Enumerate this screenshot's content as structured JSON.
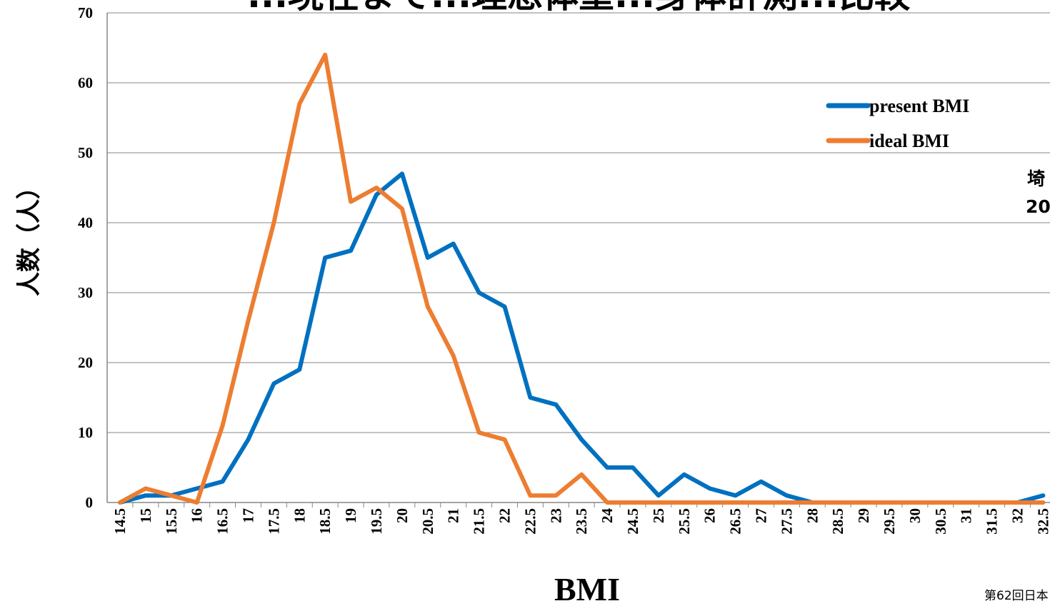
{
  "chart_data": {
    "type": "line",
    "title": "...現在まで...理想体重...身体計測...比較",
    "xlabel": "BMI",
    "ylabel": "人数（人）",
    "ylim": [
      0,
      70
    ],
    "yticks": [
      "0",
      "10",
      "20",
      "30",
      "40",
      "50",
      "60",
      "70"
    ],
    "grid": true,
    "legend_position": "top-right",
    "categories": [
      "14.5",
      "15",
      "15.5",
      "16",
      "16.5",
      "17",
      "17.5",
      "18",
      "18.5",
      "19",
      "19.5",
      "20",
      "20.5",
      "21",
      "21.5",
      "22",
      "22.5",
      "23",
      "23.5",
      "24",
      "24.5",
      "25",
      "25.5",
      "26",
      "26.5",
      "27",
      "27.5",
      "28",
      "28.5",
      "29",
      "29.5",
      "30",
      "30.5",
      "31",
      "31.5",
      "32",
      "32.5"
    ],
    "series": [
      {
        "name": "present BMI",
        "color": "#0070C0",
        "values": [
          0,
          1,
          1,
          2,
          3,
          9,
          17,
          19,
          35,
          36,
          44,
          47,
          35,
          37,
          30,
          28,
          15,
          14,
          9,
          5,
          5,
          1,
          4,
          2,
          1,
          3,
          1,
          0,
          0,
          0,
          0,
          0,
          0,
          0,
          0,
          0,
          1
        ]
      },
      {
        "name": "ideal BMI",
        "color": "#ED7D31",
        "values": [
          0,
          2,
          1,
          0,
          11,
          26,
          40,
          57,
          64,
          43,
          45,
          42,
          28,
          21,
          10,
          9,
          1,
          1,
          4,
          0,
          0,
          0,
          0,
          0,
          0,
          0,
          0,
          0,
          0,
          0,
          0,
          0,
          0,
          0,
          0,
          0,
          0
        ]
      }
    ]
  },
  "side_text": [
    "埼",
    "20"
  ],
  "footer": "第62回日本"
}
